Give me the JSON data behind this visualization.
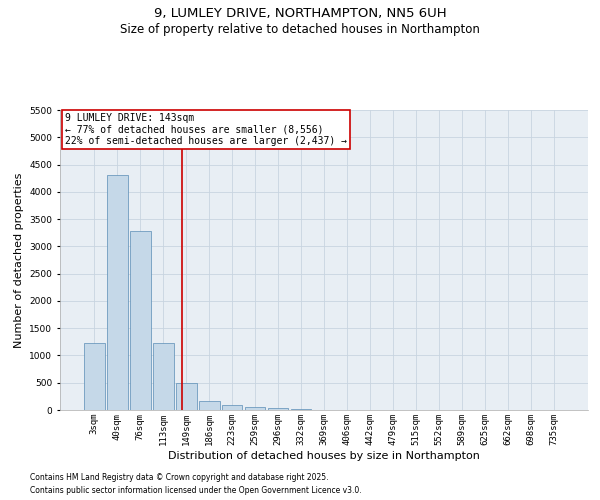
{
  "title_line1": "9, LUMLEY DRIVE, NORTHAMPTON, NN5 6UH",
  "title_line2": "Size of property relative to detached houses in Northampton",
  "xlabel": "Distribution of detached houses by size in Northampton",
  "ylabel": "Number of detached properties",
  "categories": [
    "3sqm",
    "40sqm",
    "76sqm",
    "113sqm",
    "149sqm",
    "186sqm",
    "223sqm",
    "259sqm",
    "296sqm",
    "332sqm",
    "369sqm",
    "406sqm",
    "442sqm",
    "479sqm",
    "515sqm",
    "552sqm",
    "589sqm",
    "625sqm",
    "662sqm",
    "698sqm",
    "735sqm"
  ],
  "values": [
    1220,
    4300,
    3280,
    1230,
    490,
    170,
    95,
    48,
    28,
    18,
    0,
    0,
    0,
    0,
    0,
    0,
    0,
    0,
    0,
    0,
    0
  ],
  "bar_color": "#c5d8e8",
  "bar_edge_color": "#5a8db5",
  "ylim": [
    0,
    5500
  ],
  "yticks": [
    0,
    500,
    1000,
    1500,
    2000,
    2500,
    3000,
    3500,
    4000,
    4500,
    5000,
    5500
  ],
  "property_sqm": 143,
  "vline_color": "#cc0000",
  "annotation_text": "9 LUMLEY DRIVE: 143sqm\n← 77% of detached houses are smaller (8,556)\n22% of semi-detached houses are larger (2,437) →",
  "annotation_box_color": "#ffffff",
  "annotation_border_color": "#cc0000",
  "grid_color": "#c8d4e0",
  "background_color": "#e8eef4",
  "footnote1": "Contains HM Land Registry data © Crown copyright and database right 2025.",
  "footnote2": "Contains public sector information licensed under the Open Government Licence v3.0.",
  "title_fontsize": 9.5,
  "subtitle_fontsize": 8.5,
  "axis_label_fontsize": 8,
  "tick_fontsize": 6.5,
  "annotation_fontsize": 7,
  "footnote_fontsize": 5.5
}
